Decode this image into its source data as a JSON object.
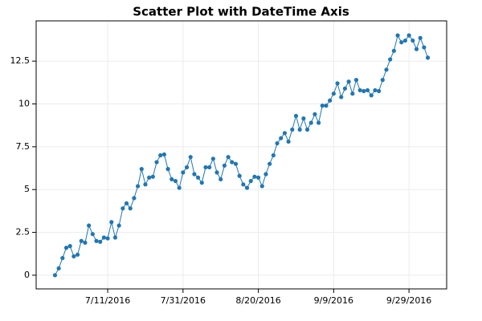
{
  "chart_data": {
    "type": "scatter",
    "title": "Scatter Plot with DateTime Axis",
    "x": [
      "2016-06-27",
      "2016-06-28",
      "2016-06-29",
      "2016-06-30",
      "2016-07-01",
      "2016-07-02",
      "2016-07-03",
      "2016-07-04",
      "2016-07-05",
      "2016-07-06",
      "2016-07-07",
      "2016-07-08",
      "2016-07-09",
      "2016-07-10",
      "2016-07-11",
      "2016-07-12",
      "2016-07-13",
      "2016-07-14",
      "2016-07-15",
      "2016-07-16",
      "2016-07-17",
      "2016-07-18",
      "2016-07-19",
      "2016-07-20",
      "2016-07-21",
      "2016-07-22",
      "2016-07-23",
      "2016-07-24",
      "2016-07-25",
      "2016-07-26",
      "2016-07-27",
      "2016-07-28",
      "2016-07-29",
      "2016-07-30",
      "2016-07-31",
      "2016-08-01",
      "2016-08-02",
      "2016-08-03",
      "2016-08-04",
      "2016-08-05",
      "2016-08-06",
      "2016-08-07",
      "2016-08-08",
      "2016-08-09",
      "2016-08-10",
      "2016-08-11",
      "2016-08-12",
      "2016-08-13",
      "2016-08-14",
      "2016-08-15",
      "2016-08-16",
      "2016-08-17",
      "2016-08-18",
      "2016-08-19",
      "2016-08-20",
      "2016-08-21",
      "2016-08-22",
      "2016-08-23",
      "2016-08-24",
      "2016-08-25",
      "2016-08-26",
      "2016-08-27",
      "2016-08-28",
      "2016-08-29",
      "2016-08-30",
      "2016-08-31",
      "2016-09-01",
      "2016-09-02",
      "2016-09-03",
      "2016-09-04",
      "2016-09-05",
      "2016-09-06",
      "2016-09-07",
      "2016-09-08",
      "2016-09-09",
      "2016-09-10",
      "2016-09-11",
      "2016-09-12",
      "2016-09-13",
      "2016-09-14",
      "2016-09-15",
      "2016-09-16",
      "2016-09-17",
      "2016-09-18",
      "2016-09-19",
      "2016-09-20",
      "2016-09-21",
      "2016-09-22",
      "2016-09-23",
      "2016-09-24",
      "2016-09-25",
      "2016-09-26",
      "2016-09-27",
      "2016-09-28",
      "2016-09-29",
      "2016-09-30",
      "2016-10-01",
      "2016-10-02",
      "2016-10-03",
      "2016-10-04"
    ],
    "series": [
      {
        "color": "#1f77b4",
        "values": [
          0,
          0.4,
          1.0,
          1.6,
          1.7,
          1.1,
          1.2,
          2.0,
          1.9,
          2.9,
          2.4,
          2.0,
          1.95,
          2.2,
          2.15,
          3.1,
          2.2,
          2.9,
          3.9,
          4.2,
          3.9,
          4.5,
          5.2,
          6.2,
          5.3,
          5.7,
          5.75,
          6.6,
          7.0,
          7.05,
          6.2,
          5.6,
          5.5,
          5.1,
          6.0,
          6.3,
          6.9,
          5.9,
          5.7,
          5.4,
          6.3,
          6.3,
          6.8,
          6.0,
          5.6,
          6.4,
          6.9,
          6.6,
          6.5,
          5.8,
          5.3,
          5.1,
          5.5,
          5.75,
          5.7,
          5.2,
          5.9,
          6.5,
          7.0,
          7.7,
          8.0,
          8.3,
          7.8,
          8.5,
          9.3,
          8.5,
          9.15,
          8.5,
          8.9,
          9.4,
          8.9,
          9.9,
          9.9,
          10.2,
          10.6,
          11.2,
          10.4,
          10.9,
          11.3,
          10.6,
          11.4,
          10.8,
          10.75,
          10.8,
          10.5,
          10.8,
          10.75,
          11.4,
          12.0,
          12.6,
          13.1,
          14.0,
          13.6,
          13.7,
          14.0,
          13.7,
          13.2,
          13.85,
          13.3,
          12.7
        ]
      }
    ],
    "xlim": [
      "2016-06-22",
      "2016-10-09"
    ],
    "xticks": [
      {
        "value": "2016-07-11",
        "label": "7/11/2016"
      },
      {
        "value": "2016-07-31",
        "label": "7/31/2016"
      },
      {
        "value": "2016-08-20",
        "label": "8/20/2016"
      },
      {
        "value": "2016-09-09",
        "label": "9/9/2016"
      },
      {
        "value": "2016-09-29",
        "label": "9/29/2016"
      }
    ],
    "ylim": [
      -0.8,
      14.85
    ],
    "yticks": [
      0,
      2.5,
      5,
      7.5,
      10,
      12.5
    ],
    "grid": true
  }
}
